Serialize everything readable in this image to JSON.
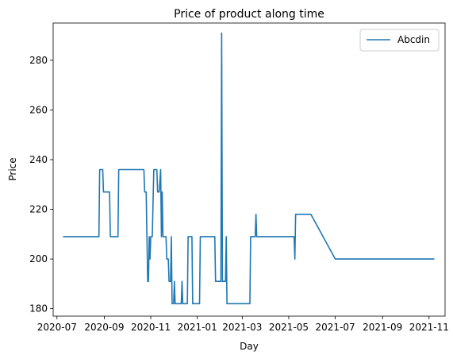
{
  "chart_data": {
    "type": "line",
    "title": "Price of product along time",
    "xlabel": "Day",
    "ylabel": "Price",
    "xlim": [
      "2020-06-26",
      "2021-11-22"
    ],
    "ylim": [
      177,
      295
    ],
    "x_ticks": [
      "2020-07",
      "2020-09",
      "2020-11",
      "2021-01",
      "2021-03",
      "2021-05",
      "2021-07",
      "2021-09",
      "2021-11"
    ],
    "y_ticks": [
      180,
      200,
      220,
      240,
      260,
      280
    ],
    "grid": false,
    "legend": "top-right",
    "series": [
      {
        "name": "Abcdin",
        "color": "#1f77b4",
        "points": [
          [
            "2020-07-09",
            209
          ],
          [
            "2020-08-25",
            209
          ],
          [
            "2020-08-26",
            236
          ],
          [
            "2020-08-30",
            236
          ],
          [
            "2020-08-31",
            227
          ],
          [
            "2020-09-08",
            227
          ],
          [
            "2020-09-09",
            209
          ],
          [
            "2020-09-19",
            209
          ],
          [
            "2020-09-20",
            236
          ],
          [
            "2020-10-11",
            236
          ],
          [
            "2020-10-12",
            236
          ],
          [
            "2020-10-23",
            236
          ],
          [
            "2020-10-24",
            227
          ],
          [
            "2020-10-26",
            227
          ],
          [
            "2020-10-27",
            209
          ],
          [
            "2020-10-28",
            191
          ],
          [
            "2020-10-29",
            191
          ],
          [
            "2020-10-30",
            209
          ],
          [
            "2020-10-31",
            200
          ],
          [
            "2020-11-01",
            209
          ],
          [
            "2020-11-03",
            209
          ],
          [
            "2020-11-05",
            236
          ],
          [
            "2020-11-09",
            236
          ],
          [
            "2020-11-10",
            227
          ],
          [
            "2020-11-12",
            227
          ],
          [
            "2020-11-14",
            236
          ],
          [
            "2020-11-15",
            209
          ],
          [
            "2020-11-16",
            227
          ],
          [
            "2020-11-17",
            209
          ],
          [
            "2020-11-21",
            209
          ],
          [
            "2020-11-22",
            200
          ],
          [
            "2020-11-24",
            200
          ],
          [
            "2020-11-25",
            191
          ],
          [
            "2020-11-27",
            191
          ],
          [
            "2020-11-28",
            209
          ],
          [
            "2020-11-29",
            182
          ],
          [
            "2020-12-01",
            182
          ],
          [
            "2020-12-02",
            191
          ],
          [
            "2020-12-03",
            182
          ],
          [
            "2020-12-11",
            182
          ],
          [
            "2020-12-12",
            191
          ],
          [
            "2020-12-13",
            182
          ],
          [
            "2020-12-19",
            182
          ],
          [
            "2020-12-20",
            209
          ],
          [
            "2020-12-25",
            209
          ],
          [
            "2020-12-26",
            182
          ],
          [
            "2021-01-04",
            182
          ],
          [
            "2021-01-05",
            209
          ],
          [
            "2021-01-24",
            209
          ],
          [
            "2021-01-25",
            191
          ],
          [
            "2021-02-01",
            191
          ],
          [
            "2021-02-02",
            291
          ],
          [
            "2021-02-03",
            191
          ],
          [
            "2021-02-07",
            191
          ],
          [
            "2021-02-08",
            209
          ],
          [
            "2021-02-09",
            182
          ],
          [
            "2021-03-11",
            182
          ],
          [
            "2021-03-12",
            209
          ],
          [
            "2021-03-18",
            209
          ],
          [
            "2021-03-19",
            218
          ],
          [
            "2021-03-20",
            209
          ],
          [
            "2021-05-08",
            209
          ],
          [
            "2021-05-09",
            200
          ],
          [
            "2021-05-10",
            218
          ],
          [
            "2021-05-30",
            218
          ],
          [
            "2021-07-01",
            200
          ],
          [
            "2021-11-08",
            200
          ]
        ]
      }
    ]
  }
}
